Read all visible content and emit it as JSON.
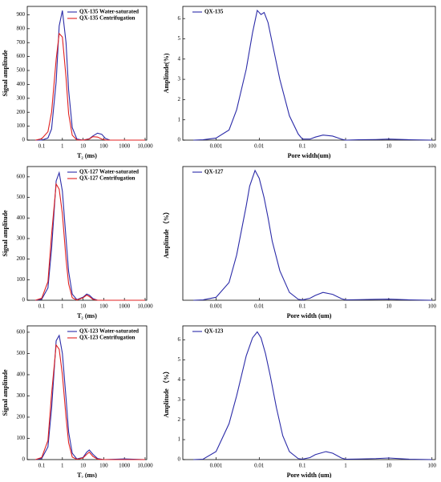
{
  "chart_data": [
    {
      "type": "line",
      "xlabel": "T₂ (ms)",
      "ylabel": "Signal amplitude",
      "xlog": true,
      "xlim": [
        0.02,
        12000
      ],
      "xticks": [
        0.1,
        1,
        10,
        100,
        1000,
        {
          "value": 10000,
          "label": "10,000"
        }
      ],
      "ylim": [
        0,
        960
      ],
      "yticks": [
        0,
        100,
        200,
        300,
        400,
        500,
        600,
        700,
        800,
        900
      ],
      "x": [
        0.05,
        0.1,
        0.2,
        0.3,
        0.5,
        0.7,
        1,
        1.5,
        2,
        3,
        5,
        10,
        20,
        30,
        50,
        80,
        120,
        200,
        1000,
        10000
      ],
      "series": [
        {
          "name": "QX-135 Water-saturated",
          "color": "#2b2ba8",
          "values": [
            0,
            0,
            15,
            80,
            420,
            820,
            930,
            700,
            360,
            90,
            8,
            0,
            10,
            30,
            50,
            42,
            12,
            0,
            0,
            0
          ]
        },
        {
          "name": "QX-135 Centrifugation",
          "color": "#e02020",
          "values": [
            0,
            10,
            60,
            200,
            580,
            765,
            740,
            450,
            190,
            35,
            2,
            0,
            8,
            25,
            22,
            8,
            1,
            0,
            0,
            0
          ]
        }
      ]
    },
    {
      "type": "line",
      "xlabel": "Pore width(um)",
      "ylabel": "Amplitude(%)",
      "xlog": true,
      "xlim": [
        0.00017,
        120
      ],
      "xticks": [
        0.001,
        0.01,
        0.1,
        1,
        10,
        100
      ],
      "ylim": [
        0,
        6.6
      ],
      "yticks": [
        0,
        1,
        2,
        3,
        4,
        5,
        6
      ],
      "x": [
        0.0003,
        0.0005,
        0.001,
        0.002,
        0.003,
        0.005,
        0.007,
        0.009,
        0.011,
        0.013,
        0.016,
        0.02,
        0.03,
        0.05,
        0.08,
        0.1,
        0.15,
        0.2,
        0.3,
        0.5,
        0.8,
        1,
        2,
        5,
        10,
        30,
        100
      ],
      "series": [
        {
          "name": "QX-135",
          "color": "#2b2ba8",
          "values": [
            0,
            0.02,
            0.1,
            0.5,
            1.5,
            3.5,
            5.3,
            6.4,
            6.2,
            6.3,
            5.8,
            4.8,
            3,
            1.2,
            0.3,
            0.05,
            0.05,
            0.15,
            0.25,
            0.2,
            0.05,
            0,
            0.02,
            0.03,
            0.05,
            0.02,
            0
          ]
        }
      ]
    },
    {
      "type": "line",
      "xlabel": "T₂ (ms)",
      "ylabel": "Signal amplitude",
      "xlog": true,
      "xlim": [
        0.02,
        12000
      ],
      "xticks": [
        0.1,
        1,
        10,
        100,
        1000,
        {
          "value": 10000,
          "label": "10,000"
        }
      ],
      "ylim": [
        0,
        650
      ],
      "yticks": [
        0,
        100,
        200,
        300,
        400,
        500,
        600
      ],
      "x": [
        0.05,
        0.1,
        0.2,
        0.3,
        0.5,
        0.7,
        1,
        1.5,
        2,
        3,
        5,
        10,
        15,
        20,
        30,
        50,
        100,
        1000,
        10000
      ],
      "series": [
        {
          "name": "QX-127 Water-saturated",
          "color": "#2b2ba8",
          "values": [
            0,
            5,
            60,
            250,
            580,
            620,
            530,
            300,
            140,
            30,
            3,
            15,
            30,
            25,
            8,
            0,
            0,
            0,
            0
          ]
        },
        {
          "name": "QX-127 Centrifugation",
          "color": "#e02020",
          "values": [
            0,
            10,
            90,
            320,
            565,
            540,
            420,
            200,
            80,
            12,
            1,
            12,
            25,
            18,
            4,
            0,
            0,
            0,
            0
          ]
        }
      ]
    },
    {
      "type": "line",
      "xlabel": "Pore width (um)",
      "ylabel": "Amplitude （%）",
      "xlog": true,
      "xlim": [
        0.00017,
        120
      ],
      "xticks": [
        0.001,
        0.01,
        0.1,
        1,
        10,
        100
      ],
      "ylim": [
        0,
        6.8
      ],
      "x": [
        0.0003,
        0.0005,
        0.001,
        0.002,
        0.003,
        0.005,
        0.006,
        0.008,
        0.01,
        0.013,
        0.016,
        0.02,
        0.03,
        0.05,
        0.08,
        0.1,
        0.15,
        0.2,
        0.3,
        0.5,
        0.8,
        1,
        2,
        5,
        10,
        30,
        100
      ],
      "series": [
        {
          "name": "QX-127",
          "color": "#2b2ba8",
          "values": [
            0,
            0.02,
            0.15,
            0.9,
            2.3,
            4.8,
            5.8,
            6.6,
            6.2,
            5.2,
            4.2,
            3,
            1.5,
            0.4,
            0.05,
            0.02,
            0.1,
            0.25,
            0.4,
            0.3,
            0.08,
            0.02,
            0.03,
            0.05,
            0.06,
            0.02,
            0
          ]
        }
      ]
    },
    {
      "type": "line",
      "xlabel": "T₂ (ms)",
      "ylabel": "Signal amplitude",
      "xlog": true,
      "xlim": [
        0.02,
        12000
      ],
      "xticks": [
        0.1,
        1,
        10,
        100,
        1000,
        {
          "value": 10000,
          "label": "10,000"
        }
      ],
      "ylim": [
        0,
        630
      ],
      "yticks": [
        0,
        100,
        200,
        300,
        400,
        500,
        600
      ],
      "x": [
        0.05,
        0.1,
        0.2,
        0.3,
        0.5,
        0.7,
        1,
        1.5,
        2,
        3,
        5,
        10,
        15,
        20,
        30,
        50,
        100,
        1000,
        10000
      ],
      "series": [
        {
          "name": "QX-123 Water-saturated",
          "color": "#2b2ba8",
          "values": [
            0,
            5,
            60,
            240,
            560,
            585,
            500,
            290,
            130,
            30,
            3,
            10,
            35,
            45,
            25,
            5,
            0,
            3,
            0
          ]
        },
        {
          "name": "QX-123 Centrifugation",
          "color": "#e02020",
          "values": [
            0,
            10,
            90,
            310,
            540,
            520,
            400,
            200,
            80,
            12,
            1,
            8,
            25,
            35,
            15,
            2,
            0,
            0,
            0
          ]
        }
      ]
    },
    {
      "type": "line",
      "xlabel": "Pore width (um)",
      "ylabel": "Amplitude （%）",
      "xlog": true,
      "xlim": [
        0.00017,
        120
      ],
      "xticks": [
        0.001,
        0.01,
        0.1,
        1,
        10,
        100
      ],
      "ylim": [
        0,
        6.7
      ],
      "yticks": [
        0,
        1,
        2,
        3,
        4,
        5,
        6
      ],
      "x": [
        0.0003,
        0.0005,
        0.001,
        0.002,
        0.003,
        0.005,
        0.007,
        0.009,
        0.011,
        0.014,
        0.018,
        0.025,
        0.035,
        0.05,
        0.08,
        0.1,
        0.15,
        0.2,
        0.35,
        0.5,
        0.8,
        1,
        2,
        5,
        10,
        30,
        100
      ],
      "series": [
        {
          "name": "QX-123",
          "color": "#2b2ba8",
          "values": [
            0,
            0.02,
            0.4,
            1.8,
            3.2,
            5.2,
            6.1,
            6.4,
            6.1,
            5.3,
            4.2,
            2.6,
            1.2,
            0.4,
            0.05,
            0.02,
            0.1,
            0.25,
            0.4,
            0.32,
            0.08,
            0.02,
            0.03,
            0.05,
            0.08,
            0.02,
            0
          ]
        }
      ]
    }
  ]
}
